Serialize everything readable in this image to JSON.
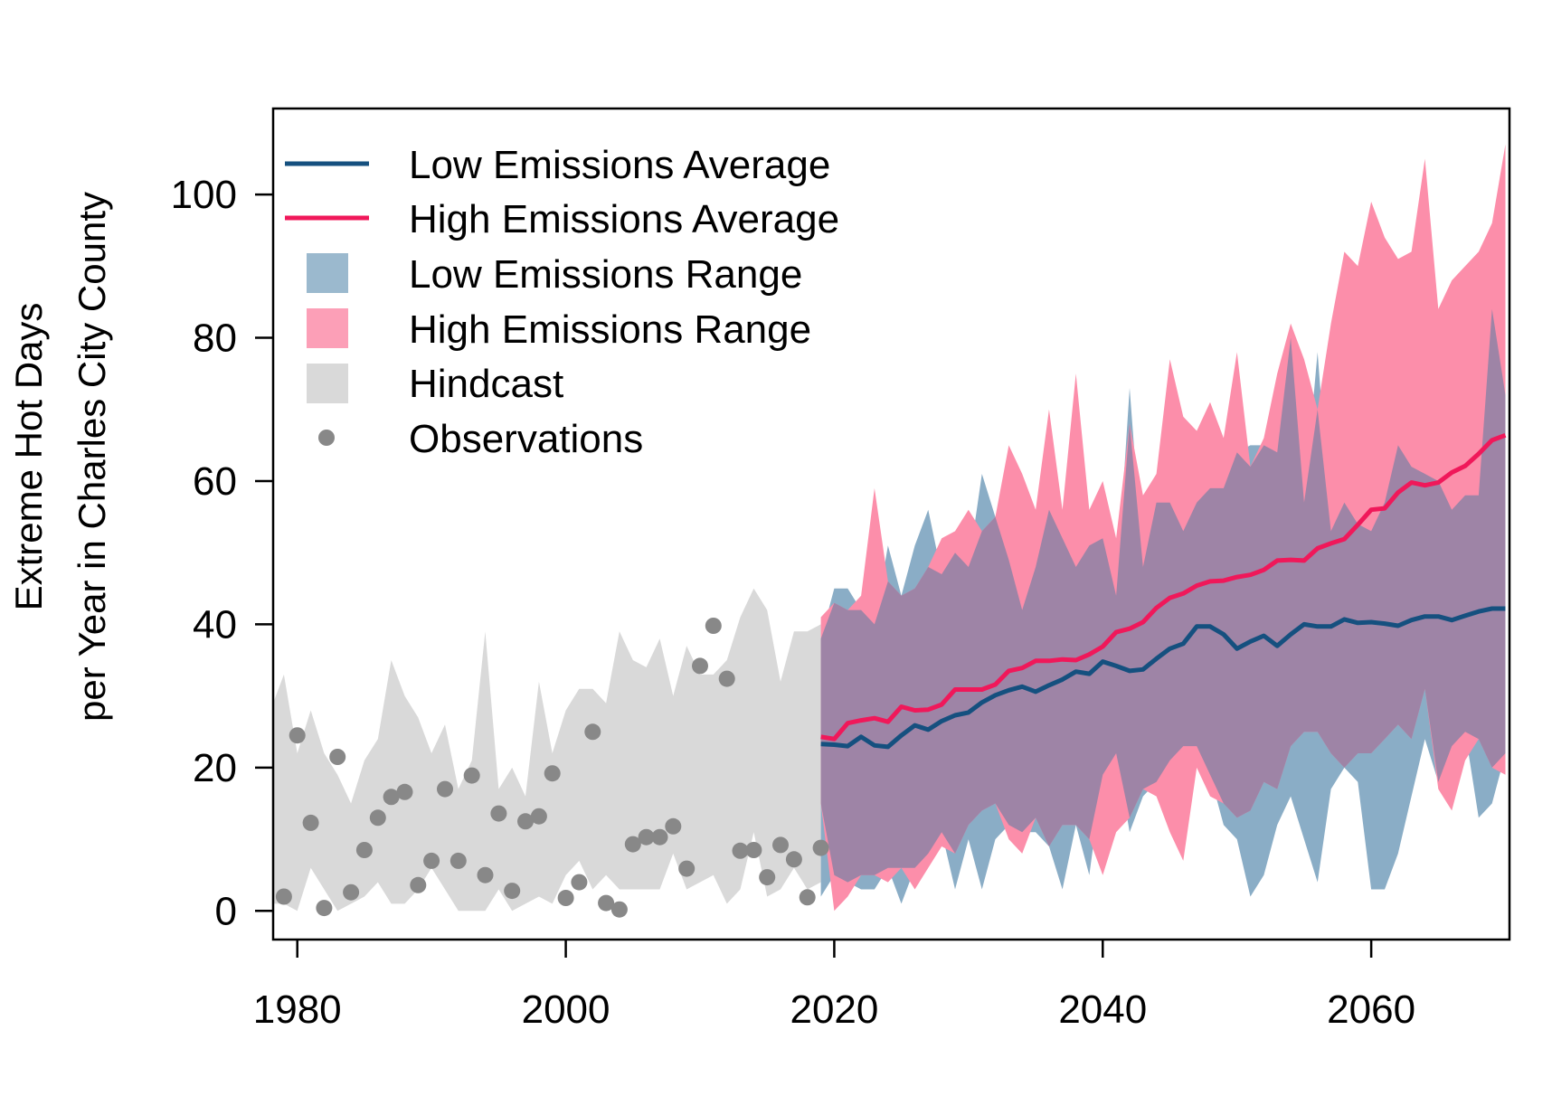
{
  "chart_data": {
    "type": "line",
    "title": "",
    "xlabel": "",
    "ylabel_lines": [
      "Extreme Hot Days",
      "per Year in Charles City County"
    ],
    "xlim": [
      1978.2,
      2070.3
    ],
    "ylim": [
      -4,
      112
    ],
    "x_ticks": [
      1980,
      2000,
      2020,
      2040,
      2060
    ],
    "y_ticks": [
      0,
      20,
      40,
      60,
      80,
      100
    ],
    "grid": false,
    "legend_position": "top-left",
    "legend": {
      "low_avg": "Low Emissions Average",
      "high_avg": "High Emissions Average",
      "low_range": "Low Emissions Range",
      "high_range": "High Emissions Range",
      "hindcast": "Hindcast",
      "observations": "Observations"
    },
    "colors": {
      "low_avg": "#15507f",
      "high_avg": "#f0185a",
      "low_range": "#8aadc6",
      "high_range": "#fc8eaa",
      "overlap": "#9e84a6",
      "hindcast": "#d9d9d9",
      "observations": "#888888"
    },
    "hindcast": {
      "x": [
        1978,
        1979,
        1980,
        1981,
        1982,
        1983,
        1984,
        1985,
        1986,
        1987,
        1988,
        1989,
        1990,
        1991,
        1992,
        1993,
        1994,
        1995,
        1996,
        1997,
        1998,
        1999,
        2000,
        2001,
        2002,
        2003,
        2004,
        2005,
        2006,
        2007,
        2008,
        2009,
        2010,
        2011,
        2012,
        2013,
        2014,
        2015,
        2016,
        2017,
        2018,
        2019
      ],
      "upper": [
        28,
        33,
        22,
        28,
        22,
        19,
        15,
        21,
        24,
        35,
        30,
        27,
        22,
        26,
        17,
        21,
        39,
        17,
        20,
        16,
        32,
        22,
        28,
        31,
        31,
        29,
        39,
        35,
        34,
        38,
        30,
        37,
        33,
        33,
        35,
        41,
        45,
        42,
        32,
        39,
        39,
        40
      ],
      "lower": [
        1,
        1,
        0,
        6,
        3,
        0,
        1,
        2,
        4,
        1,
        1,
        3,
        6,
        3,
        0,
        0,
        0,
        3,
        0,
        1,
        2,
        1,
        5,
        7,
        3,
        5,
        3,
        3,
        3,
        3,
        8,
        3,
        4,
        5,
        1,
        3,
        11,
        2,
        3,
        6,
        3,
        4
      ]
    },
    "observations": {
      "x": [
        1979,
        1980,
        1981,
        1982,
        1983,
        1984,
        1985,
        1986,
        1987,
        1988,
        1989,
        1990,
        1991,
        1992,
        1993,
        1994,
        1995,
        1996,
        1997,
        1998,
        1999,
        2000,
        2001,
        2002,
        2003,
        2004,
        2005,
        2006,
        2007,
        2008,
        2009,
        2010,
        2011,
        2012,
        2013,
        2014,
        2015,
        2016,
        2017,
        2018,
        2019
      ],
      "y": [
        2,
        24.5,
        12.3,
        0.4,
        21.5,
        2.6,
        8.5,
        13,
        15.9,
        16.6,
        3.6,
        7,
        17,
        7,
        18.9,
        5,
        13.6,
        2.8,
        12.5,
        13.2,
        19.2,
        1.8,
        4,
        25,
        1.1,
        0.2,
        9.3,
        10.3,
        10.3,
        11.8,
        5.9,
        34.2,
        39.8,
        32.4,
        8.4,
        8.5,
        4.7,
        9.2,
        7.2,
        1.9,
        8.8
      ]
    },
    "series": [
      {
        "name": "Low Emissions Average",
        "x": [
          2019,
          2020,
          2021,
          2022,
          2023,
          2024,
          2025,
          2026,
          2027,
          2028,
          2029,
          2030,
          2031,
          2032,
          2033,
          2034,
          2035,
          2036,
          2037,
          2038,
          2039,
          2040,
          2041,
          2042,
          2043,
          2044,
          2045,
          2046,
          2047,
          2048,
          2049,
          2050,
          2051,
          2052,
          2053,
          2054,
          2055,
          2056,
          2057,
          2058,
          2059,
          2060,
          2061,
          2062,
          2063,
          2064,
          2065,
          2066,
          2067,
          2068,
          2069,
          2070
        ],
        "values": [
          23.3,
          23.2,
          23.0,
          24.3,
          23.1,
          22.9,
          24.5,
          25.9,
          25.3,
          26.5,
          27.3,
          27.7,
          29.1,
          30.1,
          30.8,
          31.3,
          30.6,
          31.5,
          32.3,
          33.4,
          33.1,
          34.8,
          34.2,
          33.5,
          33.7,
          35.2,
          36.6,
          37.3,
          39.7,
          39.7,
          38.6,
          36.6,
          37.6,
          38.4,
          37.0,
          38.6,
          40.0,
          39.7,
          39.7,
          40.7,
          40.2,
          40.3,
          40.1,
          39.8,
          40.6,
          41.1,
          41.1,
          40.6,
          41.2,
          41.8,
          42.2,
          42.2
        ]
      },
      {
        "name": "High Emissions Average",
        "x": [
          2019,
          2020,
          2021,
          2022,
          2023,
          2024,
          2025,
          2026,
          2027,
          2028,
          2029,
          2030,
          2031,
          2032,
          2033,
          2034,
          2035,
          2036,
          2037,
          2038,
          2039,
          2040,
          2041,
          2042,
          2043,
          2044,
          2045,
          2046,
          2047,
          2048,
          2049,
          2050,
          2051,
          2052,
          2053,
          2054,
          2055,
          2056,
          2057,
          2058,
          2059,
          2060,
          2061,
          2062,
          2063,
          2064,
          2065,
          2066,
          2067,
          2068,
          2069,
          2070
        ],
        "values": [
          24.3,
          24.0,
          26.2,
          26.6,
          26.9,
          26.4,
          28.5,
          28.0,
          28.1,
          28.8,
          30.9,
          30.9,
          30.9,
          31.6,
          33.5,
          33.9,
          34.9,
          34.9,
          35.1,
          35.0,
          35.8,
          36.9,
          38.9,
          39.4,
          40.3,
          42.3,
          43.7,
          44.3,
          45.4,
          46.0,
          46.1,
          46.6,
          46.9,
          47.6,
          48.9,
          49.0,
          48.9,
          50.6,
          51.3,
          51.9,
          53.9,
          56.0,
          56.2,
          58.4,
          59.8,
          59.4,
          59.8,
          61.2,
          62.1,
          63.8,
          65.7,
          66.4
        ]
      }
    ],
    "low_range": {
      "x": [
        2019,
        2020,
        2021,
        2022,
        2023,
        2024,
        2025,
        2026,
        2027,
        2028,
        2029,
        2030,
        2031,
        2032,
        2033,
        2034,
        2035,
        2036,
        2037,
        2038,
        2039,
        2040,
        2041,
        2042,
        2043,
        2044,
        2045,
        2046,
        2047,
        2048,
        2049,
        2050,
        2051,
        2052,
        2053,
        2054,
        2055,
        2056,
        2057,
        2058,
        2059,
        2060,
        2061,
        2062,
        2063,
        2064,
        2065,
        2066,
        2067,
        2068,
        2069,
        2070
      ],
      "upper": [
        38,
        45,
        45,
        42,
        40,
        51,
        44,
        51,
        56,
        47,
        50,
        48,
        61,
        55,
        49,
        42,
        48,
        56,
        52,
        48,
        51,
        52,
        44,
        73,
        48,
        57,
        57,
        53,
        57,
        59,
        59,
        64,
        65,
        65,
        64,
        80,
        57,
        78,
        53,
        57,
        54,
        53,
        57,
        65,
        62,
        61,
        60,
        56,
        58,
        58,
        84,
        72
      ],
      "lower": [
        2,
        5,
        4,
        3,
        3,
        6,
        1,
        6,
        8,
        11,
        3,
        10,
        3,
        10,
        12,
        11,
        11,
        9,
        3,
        12,
        5,
        19,
        22,
        11,
        16,
        18,
        21,
        23,
        23,
        19,
        12,
        10,
        2,
        5,
        12,
        16,
        10,
        4,
        17,
        20,
        18,
        3,
        3,
        8,
        16,
        24,
        18,
        23,
        25,
        13,
        15,
        22
      ]
    },
    "high_range": {
      "x": [
        2019,
        2020,
        2021,
        2022,
        2023,
        2024,
        2025,
        2026,
        2027,
        2028,
        2029,
        2030,
        2031,
        2032,
        2033,
        2034,
        2035,
        2036,
        2037,
        2038,
        2039,
        2040,
        2041,
        2042,
        2043,
        2044,
        2045,
        2046,
        2047,
        2048,
        2049,
        2050,
        2051,
        2052,
        2053,
        2054,
        2055,
        2056,
        2057,
        2058,
        2059,
        2060,
        2061,
        2062,
        2063,
        2064,
        2065,
        2066,
        2067,
        2068,
        2069,
        2070
      ],
      "upper": [
        41,
        43,
        42,
        44,
        59,
        46,
        44,
        45,
        48,
        52,
        53,
        56,
        53,
        55,
        65,
        61,
        56,
        70,
        56,
        75,
        56,
        60,
        52,
        68,
        58,
        61,
        77,
        69,
        67,
        71,
        66,
        78,
        62,
        66,
        75,
        82,
        77,
        70,
        82,
        92,
        90,
        99,
        94,
        91,
        92,
        105,
        84,
        88,
        90,
        92,
        96,
        107
      ],
      "lower": [
        15,
        0,
        2,
        5,
        5,
        4,
        6,
        3,
        6,
        9,
        8,
        12,
        14,
        15,
        10,
        8,
        13,
        9,
        12,
        12,
        10,
        5,
        11,
        13,
        17,
        16,
        11,
        7,
        20,
        16,
        15,
        13,
        14,
        18,
        17,
        23,
        25,
        25,
        22,
        20,
        22,
        22,
        24,
        26,
        24,
        31,
        17,
        14,
        21,
        24,
        20,
        19
      ]
    }
  }
}
